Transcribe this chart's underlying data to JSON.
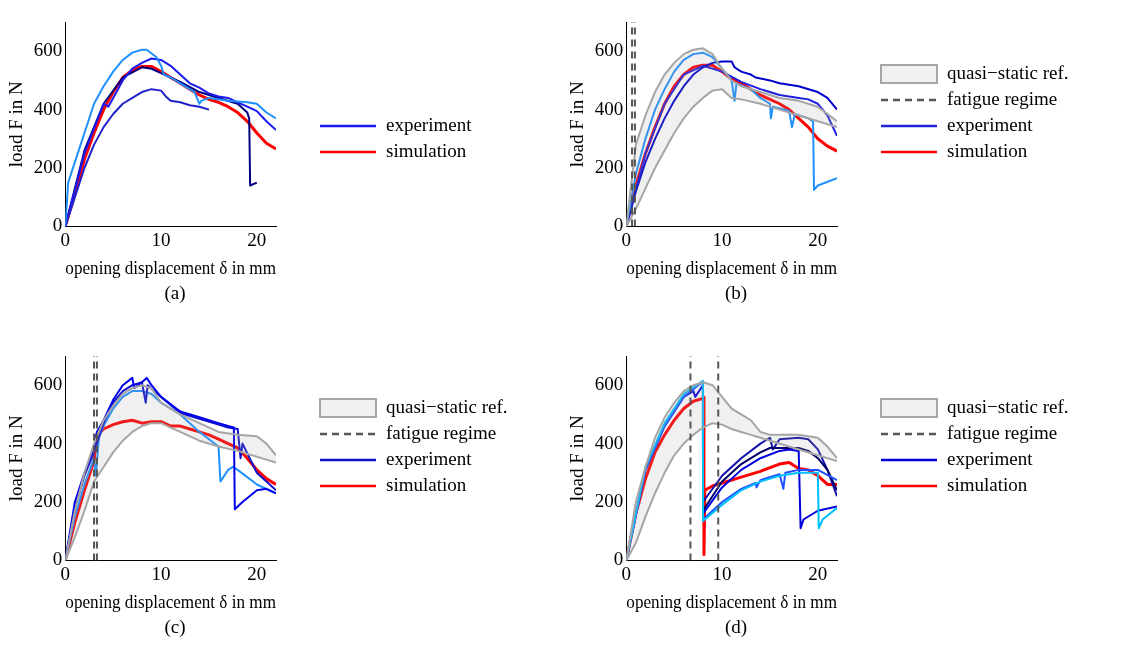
{
  "chart_data": [
    {
      "type": "line",
      "xlabel": "opening displacement δ in mm",
      "ylabel": "load F in N",
      "xlim": [
        0,
        22
      ],
      "xticks": [
        0,
        10,
        20
      ],
      "ylim": [
        0,
        700
      ],
      "yticks": [
        0,
        200,
        400,
        600
      ],
      "legend": "right",
      "annotations": [
        "(a)"
      ],
      "series": [
        {
          "color": "#1e90ff",
          "x": [
            0,
            0.3,
            1,
            2,
            3,
            4,
            5,
            6,
            7,
            8,
            8.5,
            9.5,
            10,
            10.3,
            11,
            12,
            13,
            13.5,
            14,
            14.2,
            15,
            17,
            19,
            20,
            21,
            22
          ],
          "values": [
            0,
            150,
            220,
            320,
            420,
            480,
            530,
            570,
            595,
            605,
            605,
            580,
            550,
            520,
            510,
            490,
            470,
            460,
            420,
            430,
            440,
            430,
            425,
            420,
            390,
            370
          ]
        },
        {
          "color": "#2222cc",
          "x": [
            0,
            1,
            2,
            3,
            4,
            5,
            6,
            7,
            8,
            9,
            10,
            10.5,
            11,
            12,
            13,
            14,
            15
          ],
          "values": [
            0,
            100,
            200,
            280,
            340,
            385,
            420,
            440,
            460,
            470,
            465,
            445,
            430,
            425,
            415,
            410,
            400
          ]
        },
        {
          "name": "experiment",
          "color": "#1a1aee",
          "x": [
            0,
            2,
            4,
            4.5,
            5,
            6,
            7,
            8,
            9,
            10,
            11,
            12,
            13,
            14,
            15,
            16,
            17,
            18,
            19,
            20,
            21,
            22
          ],
          "values": [
            0,
            250,
            420,
            410,
            440,
            500,
            540,
            560,
            575,
            570,
            550,
            520,
            490,
            475,
            455,
            445,
            440,
            425,
            410,
            395,
            360,
            330
          ]
        },
        {
          "color": "#000080",
          "x": [
            0,
            2,
            4,
            6,
            8,
            9,
            10,
            12,
            14,
            16,
            18,
            19,
            19.2,
            19.3,
            20
          ],
          "values": [
            0,
            260,
            420,
            510,
            545,
            540,
            525,
            495,
            460,
            440,
            420,
            390,
            370,
            140,
            150
          ]
        },
        {
          "name": "simulation",
          "color": "#ff0000",
          "x": [
            0,
            1,
            2,
            3,
            4,
            5,
            6,
            7,
            8,
            9,
            10,
            11,
            12,
            13,
            14,
            15,
            16,
            17,
            18,
            19,
            20,
            21,
            22
          ],
          "values": [
            0,
            110,
            230,
            320,
            400,
            460,
            510,
            535,
            548,
            548,
            530,
            510,
            490,
            470,
            450,
            435,
            425,
            410,
            390,
            360,
            320,
            285,
            265
          ]
        }
      ]
    },
    {
      "type": "line",
      "xlabel": "opening displacement δ in mm",
      "ylabel": "load F in N",
      "xlim": [
        0,
        22
      ],
      "xticks": [
        0,
        10,
        20
      ],
      "ylim": [
        0,
        700
      ],
      "yticks": [
        0,
        200,
        400,
        600
      ],
      "legend": "right",
      "annotations": [
        "(b)"
      ],
      "series": [
        {
          "name": "fatigue regime",
          "color": "#555555",
          "line_style": "dashed",
          "x": [
            0.6,
            0.6
          ],
          "values": [
            0,
            700
          ]
        },
        {
          "color": "#555555",
          "line_style": "dashed",
          "x": [
            0.9,
            0.9
          ],
          "values": [
            0,
            700
          ]
        },
        {
          "name": "quasi−static ref.",
          "color": "#a6a6a6",
          "x": [
            0,
            1,
            2,
            3,
            4,
            5,
            6,
            7,
            8,
            9,
            10,
            11,
            12,
            14,
            16,
            18,
            20,
            22
          ],
          "values": [
            0,
            280,
            380,
            460,
            520,
            560,
            590,
            605,
            610,
            590,
            540,
            500,
            480,
            460,
            440,
            430,
            410,
            360
          ],
          "upper": [
            0,
            280,
            380,
            460,
            520,
            560,
            590,
            605,
            610,
            590,
            540,
            500,
            480,
            460,
            440,
            430,
            410,
            360
          ],
          "lower": [
            0,
            60,
            130,
            200,
            260,
            320,
            370,
            410,
            440,
            465,
            470,
            440,
            435,
            420,
            400,
            380,
            360,
            340
          ]
        },
        {
          "color": "#a6a6a6",
          "x": [
            0,
            1,
            2,
            3,
            4,
            5,
            6,
            7,
            8,
            9,
            10,
            11,
            12,
            14,
            16,
            18,
            20,
            22
          ],
          "values": [
            0,
            60,
            130,
            200,
            260,
            320,
            370,
            410,
            440,
            465,
            470,
            440,
            435,
            420,
            400,
            380,
            360,
            340
          ]
        },
        {
          "color": "#1e90ff",
          "x": [
            0,
            1,
            2,
            3,
            4,
            5,
            6,
            7,
            8,
            9,
            10,
            11,
            11.3,
            11.5,
            13,
            14,
            15,
            15.1,
            15.3,
            17,
            17.3,
            17.6,
            19,
            19.5,
            19.6,
            20,
            22
          ],
          "values": [
            0,
            180,
            300,
            400,
            470,
            530,
            570,
            590,
            595,
            580,
            540,
            500,
            430,
            490,
            470,
            440,
            420,
            370,
            410,
            395,
            340,
            385,
            370,
            360,
            125,
            140,
            165
          ]
        },
        {
          "color": "#0000cc",
          "x": [
            0,
            1,
            2,
            3,
            4,
            5,
            6,
            7,
            8,
            9,
            10,
            11,
            11.3,
            12,
            13,
            13.5,
            15,
            16,
            18,
            20,
            21,
            22
          ],
          "values": [
            0,
            120,
            220,
            300,
            370,
            430,
            480,
            520,
            545,
            560,
            565,
            565,
            545,
            530,
            520,
            510,
            500,
            490,
            480,
            460,
            440,
            400
          ]
        },
        {
          "name": "experiment",
          "color": "#2020dd",
          "x": [
            0,
            2,
            4,
            6,
            8,
            10,
            12,
            14,
            16,
            18,
            19,
            20,
            21,
            22
          ],
          "values": [
            0,
            250,
            420,
            520,
            550,
            530,
            495,
            470,
            450,
            440,
            435,
            420,
            380,
            310
          ]
        },
        {
          "name": "simulation",
          "color": "#ff0000",
          "x": [
            0,
            1,
            2,
            3,
            4,
            5,
            6,
            7,
            8,
            9,
            10,
            11,
            12,
            13,
            14,
            15,
            16,
            17,
            18,
            19,
            20,
            21,
            22
          ],
          "values": [
            0,
            140,
            250,
            340,
            420,
            480,
            520,
            545,
            552,
            552,
            530,
            505,
            490,
            470,
            450,
            435,
            420,
            400,
            370,
            340,
            300,
            275,
            258
          ]
        }
      ]
    },
    {
      "type": "line",
      "xlabel": "opening displacement δ in mm",
      "ylabel": "load F in N",
      "xlim": [
        0,
        22
      ],
      "xticks": [
        0,
        10,
        20
      ],
      "ylim": [
        0,
        700
      ],
      "yticks": [
        0,
        200,
        400,
        600
      ],
      "legend": "right",
      "annotations": [
        "(c)"
      ],
      "series": [
        {
          "name": "fatigue regime",
          "color": "#555555",
          "line_style": "dashed",
          "x": [
            3.0,
            3.0
          ],
          "values": [
            0,
            700
          ]
        },
        {
          "color": "#555555",
          "line_style": "dashed",
          "x": [
            3.3,
            3.3
          ],
          "values": [
            0,
            700
          ]
        },
        {
          "name": "quasi−static ref.",
          "color": "#a6a6a6",
          "x": [
            0,
            1,
            2,
            3,
            4,
            5,
            6,
            7,
            8,
            9,
            10,
            11,
            12,
            14,
            16,
            18,
            20,
            21,
            22
          ],
          "values": [
            0,
            170,
            300,
            400,
            480,
            530,
            570,
            590,
            600,
            590,
            540,
            520,
            500,
            470,
            440,
            430,
            425,
            400,
            360
          ],
          "upper": [
            0,
            170,
            300,
            400,
            480,
            530,
            570,
            590,
            600,
            590,
            540,
            520,
            500,
            470,
            440,
            430,
            425,
            400,
            360
          ],
          "lower": [
            0,
            80,
            170,
            270,
            320,
            370,
            410,
            440,
            460,
            470,
            470,
            455,
            440,
            410,
            390,
            375,
            355,
            345,
            335
          ]
        },
        {
          "color": "#a6a6a6",
          "x": [
            0,
            1,
            2,
            3,
            4,
            5,
            6,
            7,
            8,
            9,
            10,
            11,
            12,
            14,
            16,
            18,
            20,
            21,
            22
          ],
          "values": [
            0,
            80,
            170,
            270,
            320,
            370,
            410,
            440,
            460,
            470,
            470,
            455,
            440,
            410,
            390,
            375,
            355,
            345,
            335
          ]
        },
        {
          "color": "#0000ee",
          "x": [
            0,
            1,
            2,
            3,
            3.3,
            4,
            5,
            6,
            7,
            7.2,
            8,
            8.5,
            9,
            10,
            12,
            14,
            16,
            17,
            17.6,
            17.7,
            18.5,
            20,
            21,
            22
          ],
          "values": [
            0,
            200,
            300,
            380,
            440,
            480,
            550,
            600,
            625,
            590,
            610,
            625,
            600,
            560,
            510,
            490,
            470,
            460,
            455,
            175,
            200,
            240,
            245,
            230
          ]
        },
        {
          "name": "experiment",
          "color": "#1010cc",
          "x": [
            0,
            1,
            2,
            3,
            4,
            5,
            6,
            7,
            8,
            8.4,
            8.6,
            10,
            12,
            14,
            16,
            17,
            18,
            18.3,
            18.5,
            20,
            21,
            22
          ],
          "values": [
            0,
            180,
            290,
            370,
            470,
            540,
            580,
            600,
            610,
            540,
            600,
            560,
            505,
            485,
            465,
            455,
            450,
            350,
            400,
            300,
            270,
            240
          ]
        },
        {
          "color": "#1e90ff",
          "x": [
            0,
            1,
            2,
            3,
            3.2,
            3.5,
            4,
            5,
            6,
            7,
            8,
            9,
            10,
            12,
            14,
            16,
            16.2,
            17,
            17.5,
            18,
            20,
            22
          ],
          "values": [
            0,
            150,
            260,
            350,
            290,
            420,
            460,
            520,
            560,
            580,
            580,
            570,
            540,
            500,
            440,
            390,
            270,
            310,
            320,
            310,
            260,
            230
          ]
        },
        {
          "name": "simulation",
          "color": "#ff0000",
          "x": [
            0,
            1,
            2,
            3,
            3.3,
            4,
            5,
            6,
            7,
            8,
            9,
            10,
            11,
            12,
            13,
            14,
            15,
            16,
            17,
            18,
            19,
            20,
            21,
            22
          ],
          "values": [
            0,
            130,
            240,
            340,
            430,
            450,
            465,
            475,
            480,
            470,
            475,
            475,
            460,
            460,
            450,
            440,
            430,
            415,
            400,
            385,
            350,
            310,
            280,
            260
          ]
        }
      ]
    },
    {
      "type": "line",
      "xlabel": "opening displacement δ in mm",
      "ylabel": "load F in N",
      "xlim": [
        0,
        22
      ],
      "xticks": [
        0,
        10,
        20
      ],
      "ylim": [
        0,
        700
      ],
      "yticks": [
        0,
        200,
        400,
        600
      ],
      "legend": "right",
      "annotations": [
        "(d)"
      ],
      "series": [
        {
          "name": "fatigue regime",
          "color": "#555555",
          "line_style": "dashed",
          "x": [
            6.7,
            6.7
          ],
          "values": [
            0,
            700
          ]
        },
        {
          "color": "#555555",
          "line_style": "dashed",
          "x": [
            9.6,
            9.6
          ],
          "values": [
            0,
            700
          ]
        },
        {
          "name": "quasi−static ref.",
          "color": "#a6a6a6",
          "x": [
            0,
            1,
            2,
            3,
            4,
            5,
            6,
            7,
            8,
            9,
            10,
            11,
            12,
            13,
            14,
            15,
            18,
            20,
            21,
            22
          ],
          "values": [
            0,
            200,
            320,
            420,
            490,
            540,
            580,
            600,
            610,
            600,
            560,
            520,
            500,
            480,
            440,
            430,
            430,
            420,
            390,
            350
          ],
          "upper": [
            0,
            200,
            320,
            420,
            490,
            540,
            580,
            600,
            610,
            600,
            560,
            520,
            500,
            480,
            440,
            430,
            430,
            420,
            390,
            350
          ],
          "lower": [
            0,
            60,
            150,
            230,
            300,
            360,
            400,
            430,
            455,
            470,
            465,
            450,
            440,
            430,
            420,
            410,
            380,
            360,
            350,
            340
          ]
        },
        {
          "color": "#a6a6a6",
          "x": [
            0,
            1,
            2,
            3,
            4,
            5,
            6,
            7,
            8,
            9,
            10,
            11,
            12,
            13,
            14,
            15,
            18,
            20,
            21,
            22
          ],
          "values": [
            0,
            60,
            150,
            230,
            300,
            360,
            400,
            430,
            455,
            470,
            465,
            450,
            440,
            430,
            420,
            410,
            380,
            360,
            350,
            340
          ]
        },
        {
          "color": "#00bfff",
          "x": [
            0,
            2,
            4,
            6,
            8,
            8.01,
            10,
            12,
            14,
            16,
            18,
            20,
            20.1,
            20.5,
            22
          ],
          "values": [
            0,
            320,
            470,
            570,
            615,
            135,
            190,
            240,
            270,
            290,
            300,
            300,
            110,
            140,
            180
          ]
        },
        {
          "color": "#1e50ff",
          "x": [
            0,
            2,
            4,
            6,
            7.5,
            8,
            8.01,
            10,
            12,
            13.5,
            13.6,
            14,
            16,
            16.4,
            16.6,
            18,
            20,
            22
          ],
          "values": [
            0,
            310,
            460,
            560,
            600,
            610,
            140,
            200,
            245,
            265,
            250,
            275,
            295,
            245,
            300,
            310,
            310,
            275
          ]
        },
        {
          "name": "experiment",
          "color": "#0000dd",
          "x": [
            0,
            2,
            4,
            6,
            7,
            7.2,
            8,
            8.01,
            10,
            12,
            14,
            16,
            17,
            18,
            18.2,
            18.5,
            20,
            22
          ],
          "values": [
            0,
            310,
            460,
            560,
            580,
            560,
            600,
            160,
            250,
            310,
            350,
            375,
            380,
            375,
            110,
            140,
            170,
            185
          ]
        },
        {
          "color": "#000066",
          "x": [
            8,
            10,
            12,
            14,
            15,
            16,
            18,
            19,
            20,
            21,
            22
          ],
          "values": [
            170,
            270,
            330,
            370,
            385,
            385,
            385,
            375,
            350,
            310,
            240
          ]
        },
        {
          "color": "#1010aa",
          "x": [
            8,
            10,
            12,
            14,
            15,
            15.3,
            16,
            18,
            19,
            20,
            21,
            22
          ],
          "values": [
            200,
            290,
            350,
            400,
            420,
            380,
            415,
            420,
            415,
            380,
            310,
            220
          ]
        },
        {
          "name": "simulation",
          "color": "#ff0000",
          "x": [
            0,
            1,
            2,
            3,
            4,
            5,
            6,
            7,
            8,
            8.1,
            8.11,
            8.2,
            9,
            10,
            12,
            14,
            16,
            17,
            18,
            19,
            20,
            21,
            22
          ],
          "values": [
            0,
            160,
            280,
            370,
            430,
            480,
            520,
            545,
            555,
            560,
            20,
            240,
            255,
            265,
            285,
            305,
            330,
            335,
            315,
            310,
            290,
            260,
            260
          ]
        }
      ]
    }
  ]
}
